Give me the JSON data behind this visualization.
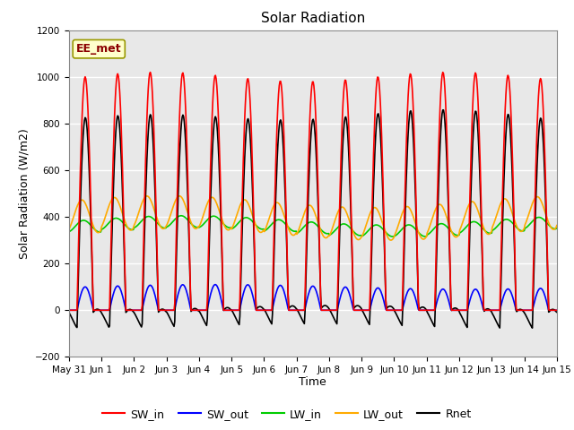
{
  "title": "Solar Radiation",
  "xlabel": "Time",
  "ylabel": "Solar Radiation (W/m2)",
  "ylim": [
    -200,
    1200
  ],
  "yticks": [
    -200,
    0,
    200,
    400,
    600,
    800,
    1000,
    1200
  ],
  "num_days": 15,
  "bg_color": "#ffffff",
  "plot_bg_color": "#e8e8e8",
  "grid_color": "#ffffff",
  "annotation_text": "EE_met",
  "annotation_bg": "#ffffcc",
  "annotation_border": "#999900",
  "legend_entries": [
    "SW_in",
    "SW_out",
    "LW_in",
    "LW_out",
    "Rnet"
  ],
  "legend_colors": [
    "#ff0000",
    "#0000ff",
    "#00cc00",
    "#ffaa00",
    "#000000"
  ],
  "line_width": 1.2,
  "tick_labels": [
    "May 31",
    "Jun 1",
    "Jun 2",
    "Jun 3",
    "Jun 4",
    "Jun 5",
    "Jun 6",
    "Jun 7",
    "Jun 8",
    "Jun 9",
    "Jun 10",
    "Jun 11",
    "Jun 12",
    "Jun 13",
    "Jun 14",
    "Jun 15"
  ]
}
